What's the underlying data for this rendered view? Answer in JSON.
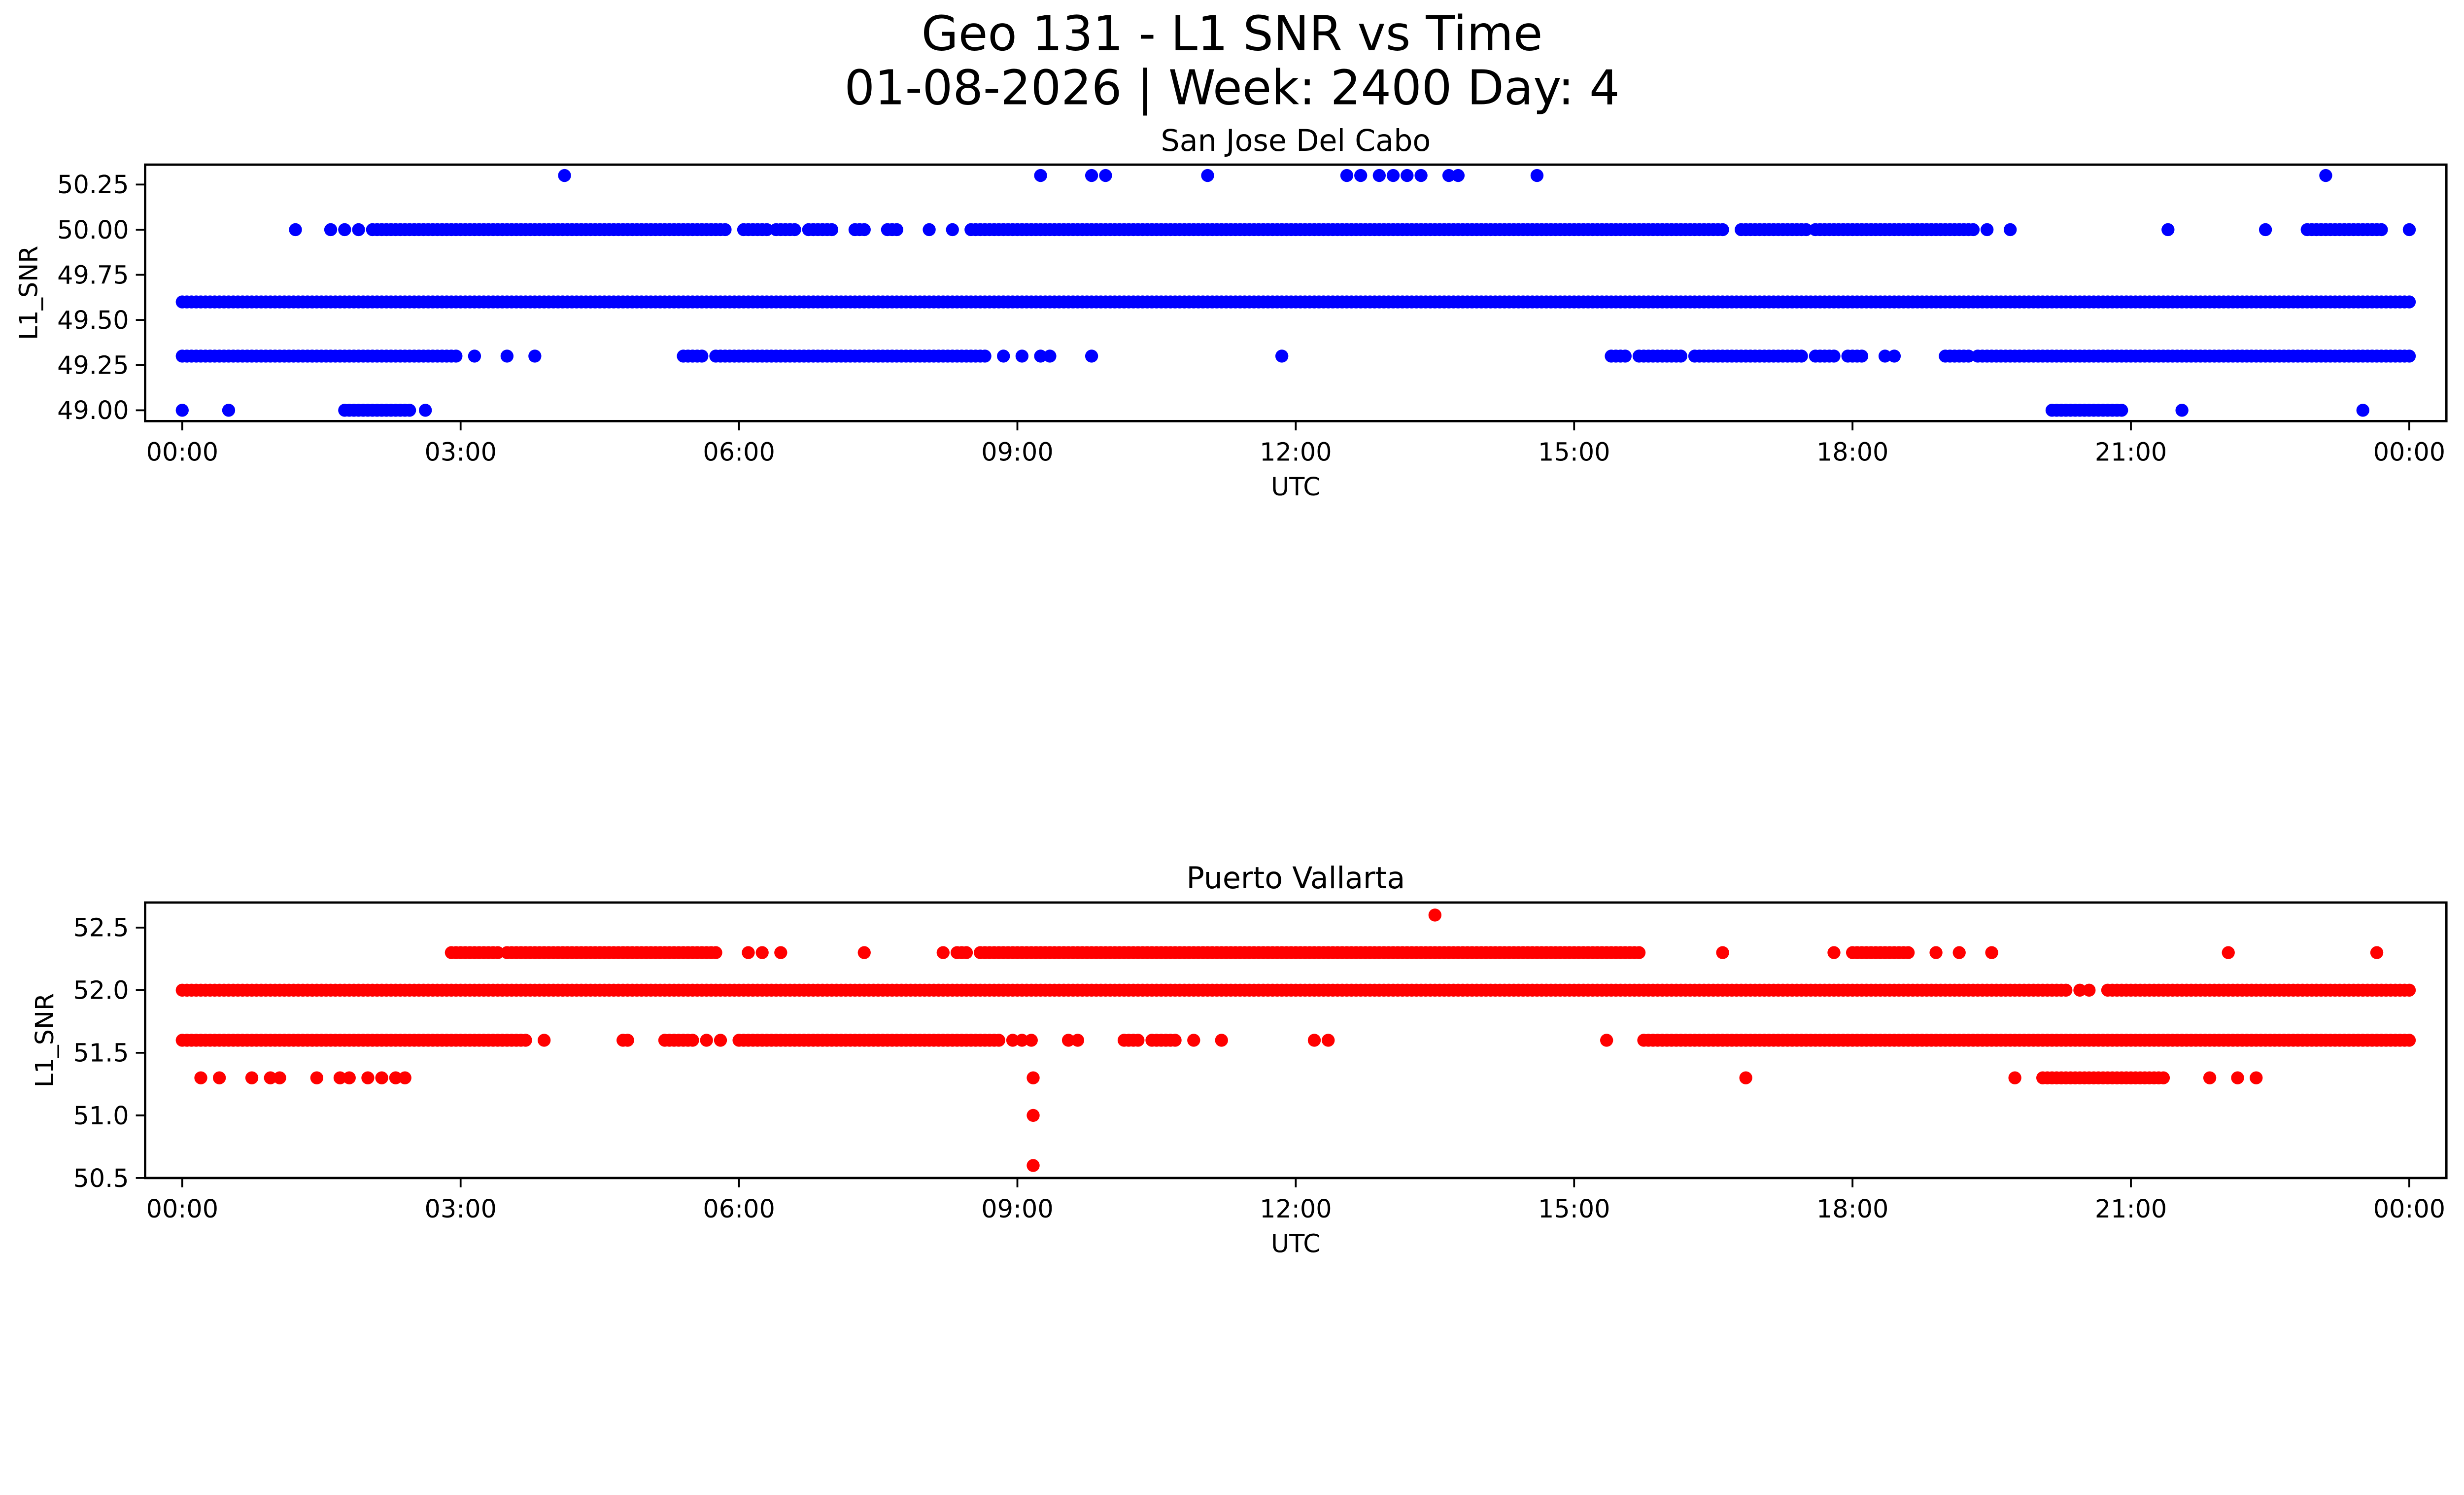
{
  "figure": {
    "title_line1": "Geo 131 - L1 SNR vs Time",
    "title_line2": "01-08-2026 | Week: 2400 Day: 4"
  },
  "chart_data": [
    {
      "type": "scatter",
      "title": "San Jose Del Cabo",
      "xlabel": "UTC",
      "ylabel": "L1_SNR",
      "color": "#0000ff",
      "xlim_hours": [
        -0.4,
        24.4
      ],
      "ylim": [
        48.94,
        50.36
      ],
      "x_ticks": [
        {
          "hours": 0,
          "label": "00:00"
        },
        {
          "hours": 3,
          "label": "03:00"
        },
        {
          "hours": 6,
          "label": "06:00"
        },
        {
          "hours": 9,
          "label": "09:00"
        },
        {
          "hours": 12,
          "label": "12:00"
        },
        {
          "hours": 15,
          "label": "15:00"
        },
        {
          "hours": 18,
          "label": "18:00"
        },
        {
          "hours": 21,
          "label": "21:00"
        },
        {
          "hours": 24,
          "label": "00:00"
        }
      ],
      "y_ticks": [
        {
          "value": 49.0,
          "label": "49.00"
        },
        {
          "value": 49.25,
          "label": "49.25"
        },
        {
          "value": 49.5,
          "label": "49.50"
        },
        {
          "value": 49.75,
          "label": "49.75"
        },
        {
          "value": 50.0,
          "label": "50.00"
        },
        {
          "value": 50.25,
          "label": "50.25"
        }
      ],
      "sample_step_hours": 0.05,
      "series": [
        {
          "snr": 49.6,
          "runs_hours": [
            [
              0.0,
              24.0
            ]
          ],
          "points_hours": []
        },
        {
          "snr": 50.0,
          "runs_hours": [
            [
              2.05,
              5.85
            ],
            [
              6.05,
              6.3
            ],
            [
              6.4,
              6.6
            ],
            [
              6.75,
              7.0
            ],
            [
              7.25,
              7.35
            ],
            [
              7.6,
              7.7
            ],
            [
              8.5,
              15.4
            ],
            [
              15.45,
              16.6
            ],
            [
              16.8,
              17.5
            ],
            [
              17.6,
              19.3
            ],
            [
              22.9,
              23.7
            ]
          ],
          "points_hours": [
            1.22,
            1.6,
            1.75,
            1.9,
            8.05,
            8.3,
            19.45,
            19.7,
            21.4,
            22.45,
            24.0
          ]
        },
        {
          "snr": 50.3,
          "runs_hours": [],
          "points_hours": [
            4.12,
            9.25,
            9.8,
            9.95,
            11.05,
            12.55,
            12.7,
            12.9,
            13.05,
            13.2,
            13.35,
            13.65,
            13.75,
            14.6,
            23.1
          ]
        },
        {
          "snr": 49.3,
          "runs_hours": [
            [
              0.0,
              2.95
            ],
            [
              5.4,
              5.6
            ],
            [
              5.75,
              8.65
            ],
            [
              15.4,
              15.55
            ],
            [
              15.7,
              16.15
            ],
            [
              16.3,
              17.45
            ],
            [
              17.6,
              17.8
            ],
            [
              17.95,
              18.1
            ],
            [
              19.0,
              19.25
            ],
            [
              19.35,
              24.0
            ]
          ],
          "points_hours": [
            3.15,
            3.5,
            3.8,
            8.85,
            9.05,
            9.25,
            9.35,
            9.8,
            11.85,
            18.35,
            18.45
          ]
        },
        {
          "snr": 49.0,
          "runs_hours": [
            [
              1.75,
              2.45
            ],
            [
              20.15,
              20.9
            ]
          ],
          "points_hours": [
            0.0,
            0.5,
            2.62,
            21.55,
            23.5
          ]
        }
      ]
    },
    {
      "type": "scatter",
      "title": "Puerto Vallarta",
      "xlabel": "UTC",
      "ylabel": "L1_SNR",
      "color": "#ff0000",
      "xlim_hours": [
        -0.4,
        24.4
      ],
      "ylim": [
        50.5,
        52.7
      ],
      "x_ticks": [
        {
          "hours": 0,
          "label": "00:00"
        },
        {
          "hours": 3,
          "label": "03:00"
        },
        {
          "hours": 6,
          "label": "06:00"
        },
        {
          "hours": 9,
          "label": "09:00"
        },
        {
          "hours": 12,
          "label": "12:00"
        },
        {
          "hours": 15,
          "label": "15:00"
        },
        {
          "hours": 18,
          "label": "18:00"
        },
        {
          "hours": 21,
          "label": "21:00"
        },
        {
          "hours": 24,
          "label": "00:00"
        }
      ],
      "y_ticks": [
        {
          "value": 50.5,
          "label": "50.5"
        },
        {
          "value": 51.0,
          "label": "51.0"
        },
        {
          "value": 51.5,
          "label": "51.5"
        },
        {
          "value": 52.0,
          "label": "52.0"
        },
        {
          "value": 52.5,
          "label": "52.5"
        }
      ],
      "sample_step_hours": 0.05,
      "series": [
        {
          "snr": 52.0,
          "runs_hours": [
            [
              0.0,
              20.3
            ],
            [
              20.75,
              24.0
            ]
          ],
          "points_hours": [
            20.45,
            20.55
          ]
        },
        {
          "snr": 51.6,
          "runs_hours": [
            [
              0.0,
              3.7
            ],
            [
              5.2,
              5.5
            ],
            [
              6.0,
              8.8
            ],
            [
              10.15,
              10.3
            ],
            [
              10.45,
              10.7
            ],
            [
              15.75,
              24.0
            ]
          ],
          "points_hours": [
            3.9,
            4.75,
            4.8,
            5.65,
            5.8,
            8.95,
            9.05,
            9.15,
            9.55,
            9.65,
            10.9,
            11.2,
            12.2,
            12.35,
            15.35
          ]
        },
        {
          "snr": 52.3,
          "runs_hours": [
            [
              2.9,
              3.4
            ],
            [
              3.5,
              5.75
            ],
            [
              8.35,
              8.45
            ],
            [
              8.6,
              15.7
            ],
            [
              18.0,
              18.6
            ]
          ],
          "points_hours": [
            6.1,
            6.25,
            6.45,
            7.35,
            8.2,
            16.6,
            17.8,
            18.9,
            19.15,
            19.5,
            22.05,
            23.65
          ]
        },
        {
          "snr": 52.6,
          "runs_hours": [],
          "points_hours": [
            13.5
          ]
        },
        {
          "snr": 51.3,
          "runs_hours": [
            [
              20.05,
              21.3
            ]
          ],
          "points_hours": [
            0.2,
            0.4,
            0.75,
            0.95,
            1.05,
            1.45,
            1.7,
            1.8,
            2.0,
            2.15,
            2.3,
            2.4,
            9.17,
            16.85,
            19.75,
            21.35,
            21.85,
            22.15,
            22.35
          ]
        },
        {
          "snr": 51.0,
          "runs_hours": [],
          "points_hours": [
            9.17
          ]
        },
        {
          "snr": 50.6,
          "runs_hours": [],
          "points_hours": [
            9.17
          ]
        }
      ]
    }
  ]
}
